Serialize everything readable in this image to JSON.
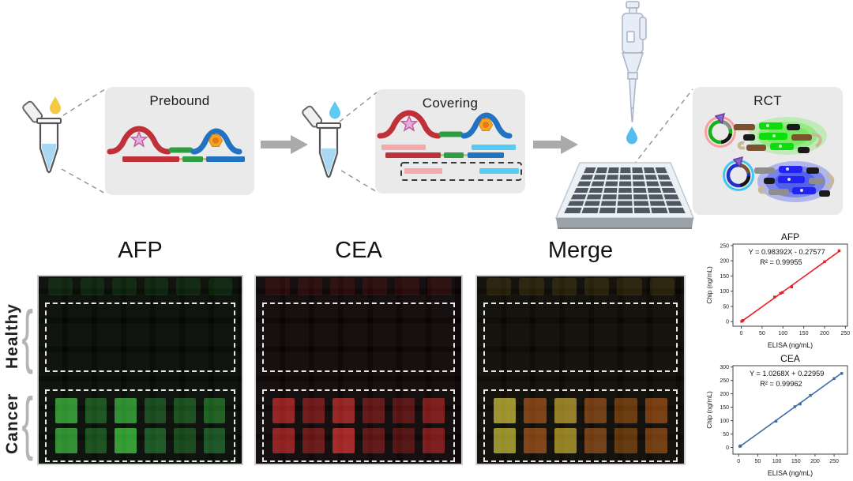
{
  "workflow": {
    "steps": [
      {
        "label": "Prebound"
      },
      {
        "label": "Covering"
      },
      {
        "label": "RCT"
      }
    ]
  },
  "rows": [
    {
      "label": "Healthy"
    },
    {
      "label": "Cancer"
    }
  ],
  "panels": [
    {
      "label": "AFP",
      "bg": "#050903",
      "tint": "#2f9e33",
      "squares": [
        [
          "#2d8f2d",
          "#174f1a",
          "#2a8a2c",
          "#14461a",
          "#164a1a",
          "#1a5a1e"
        ],
        [
          "#2a8c2b",
          "#164d19",
          "#2d9a2e",
          "#175320",
          "#134417",
          "#175020"
        ]
      ]
    },
    {
      "label": "CEA",
      "bg": "#0b0404",
      "tint": "#b42222",
      "squares": [
        [
          "#8f1d1d",
          "#6b1414",
          "#911f1f",
          "#5e1212",
          "#540f0f",
          "#7a1717"
        ],
        [
          "#8c1c1c",
          "#661313",
          "#a02222",
          "#5a1111",
          "#4e0e0e",
          "#781616"
        ]
      ]
    },
    {
      "label": "Merge",
      "bg": "#0b0803",
      "tint": "#a88a20",
      "squares": [
        [
          "#9a8f28",
          "#7a3c10",
          "#8f7a20",
          "#6e3810",
          "#643408",
          "#74380c"
        ],
        [
          "#948c26",
          "#7c3e10",
          "#8f7d1e",
          "#6f3a10",
          "#5e3208",
          "#6e380c"
        ]
      ]
    }
  ],
  "chart_data": [
    {
      "type": "scatter",
      "title": "AFP",
      "xlabel": "ELISA (ng/mL)",
      "ylabel": "Chip (ng/mL)",
      "equation": "Y = 0.98392X - 0.27577",
      "r2": "R² = 0.99955",
      "color": "#ed1c24",
      "grid": false,
      "xlim": [
        -20,
        255
      ],
      "ylim": [
        -15,
        255
      ],
      "xticks": [
        0,
        50,
        100,
        150,
        200,
        250
      ],
      "yticks": [
        0,
        50,
        100,
        150,
        200,
        250
      ],
      "x": [
        1,
        4,
        80,
        94,
        99,
        121,
        200,
        235
      ],
      "y": [
        1,
        4,
        81,
        93,
        96,
        114,
        197,
        233
      ],
      "fit": {
        "slope": 0.98392,
        "intercept": -0.27577,
        "x_range": [
          0,
          236
        ]
      }
    },
    {
      "type": "scatter",
      "title": "CEA",
      "xlabel": "ELISA (ng/mL)",
      "ylabel": "Chip (ng/mL)",
      "equation": "Y = 1.0268X + 0.22959",
      "r2": "R² = 0.99962",
      "color": "#3a6ea8",
      "grid": false,
      "xlim": [
        -15,
        285
      ],
      "ylim": [
        -25,
        305
      ],
      "xticks": [
        0,
        50,
        100,
        150,
        200,
        250
      ],
      "yticks": [
        0,
        50,
        100,
        150,
        200,
        250,
        300
      ],
      "x": [
        3,
        5,
        98,
        147,
        161,
        188,
        250,
        270
      ],
      "y": [
        4,
        6,
        98,
        152,
        162,
        194,
        257,
        276
      ],
      "fit": {
        "slope": 1.0268,
        "intercept": 0.22959,
        "x_range": [
          2,
          271
        ]
      }
    }
  ],
  "colors": {
    "strand_red": "#bf3038",
    "strand_green": "#2f9e41",
    "strand_blue": "#2173c2",
    "cover_pink": "#f7a8ac",
    "cover_lightblue": "#55ccf5",
    "glow_green": "#55e83a",
    "glow_blue": "#2a3cf0",
    "drop_yellow": "#f6c945",
    "drop_blue": "#54bdf0",
    "afp_chart": "#ed1c24",
    "cea_chart": "#3a6ea8"
  },
  "icons": [
    "tube-icon",
    "droplet-icon",
    "pipette-icon",
    "chip-icon",
    "arrow-icon",
    "dna-strand-motif",
    "padlock-circle-motif",
    "brace-icon"
  ]
}
